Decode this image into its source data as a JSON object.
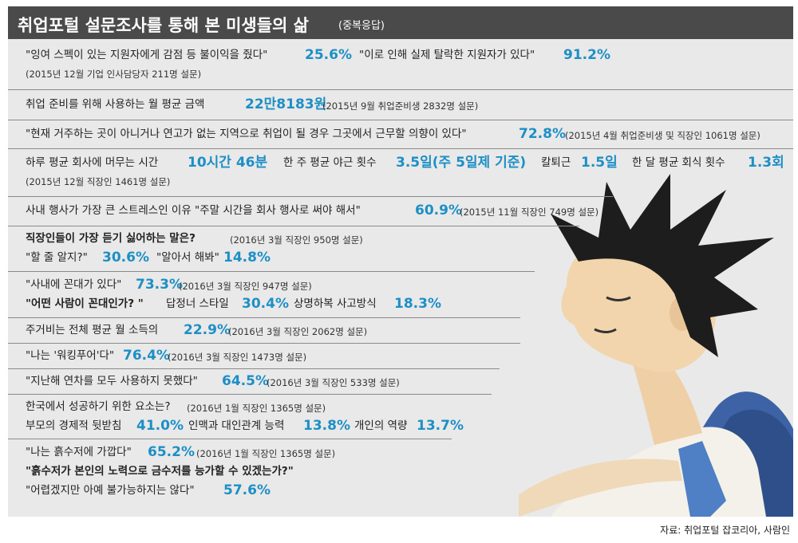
{
  "title": "취업포털 설문조사를 통해 본 미생들의 삶",
  "title_note": "(중복응답)",
  "colors": {
    "accent": "#1d8fc6",
    "title_bg": "#4a4a4a",
    "panel_bg": "#e9e9e9"
  },
  "items": {
    "spec": {
      "q1": "\"잉여 스펙이 있는 지원자에게 감점 등 불이익을 줬다\"",
      "v1": "25.6%",
      "q2": "\"이로 인해 실제 탈락한 지원자가 있다\"",
      "v2": "91.2%",
      "note": "(2015년 12월 기업 인사담당자 211명 설문)"
    },
    "cost": {
      "q": "취업 준비를 위해 사용하는 월 평균 금액",
      "v": "22만8183원",
      "note": "(2015년 9월 취업준비생 2832명 설문)"
    },
    "relocate": {
      "q": "\"현재 거주하는 곳이 아니거나 연고가 없는 지역으로 취업이 될 경우 그곳에서 근무할 의향이 있다\"",
      "v": "72.8%",
      "note": "(2015년 4월 취업준비생 및 직장인 1061명 설문)"
    },
    "hours": {
      "q1": "하루 평균 회사에 머무는 시간",
      "v1": "10시간 46분",
      "q2": "한 주 평균 야근 횟수",
      "v2": "3.5일(주 5일제 기준)",
      "q3": "칼퇴근",
      "v3": "1.5일",
      "q4": "한 달 평균 회식 횟수",
      "v4": "1.3회",
      "note": "(2015년 12월 직장인 1461명 설문)"
    },
    "stress": {
      "q": "사내 행사가 가장 큰 스트레스인 이유  \"주말 시간을 회사 행사로 써야 해서\"",
      "v": "60.9%",
      "note": "(2015년 11월 직장인 749명 설문)"
    },
    "words": {
      "q": "직장인들이 가장 듣기 싫어하는 말은?",
      "note": "(2016년 3월 직장인 950명 설문)",
      "a1": "\"할 줄 알지?\"",
      "v1": "30.6%",
      "a2": "\"알아서 해봐\"",
      "v2": "14.8%"
    },
    "kkondae": {
      "q": "\"사내에 꼰대가 있다\"",
      "v": "73.3%",
      "note": "(2016년 3월 직장인 947명 설문)",
      "q2": "\"어떤 사람이 꼰대인가? \"",
      "a1": "답정너 스타일",
      "v1": "30.4%",
      "a2": "상명하복 사고방식",
      "v2": "18.3%"
    },
    "housing": {
      "q": "주거비는 전체 평균 월 소득의",
      "v": "22.9%",
      "note": "(2016년 3월 직장인 2062명 설문)"
    },
    "working_poor": {
      "q": "\"나는 '워킹푸어'다\"",
      "v": "76.4%",
      "note": "(2016년 3월 직장인 1473명 설문)"
    },
    "vacation": {
      "q": "\"지난해 연차를 모두 사용하지 못했다\"",
      "v": "64.5%",
      "note": "(2016년 3월 직장인 533명 설문)"
    },
    "success": {
      "q": "한국에서 성공하기 위한 요소는?",
      "note": "(2016년 1월 직장인 1365명 설문)",
      "a1": "부모의 경제적 뒷받침",
      "v1": "41.0%",
      "a2": "인맥과 대인관계 능력",
      "v2": "13.8%",
      "a3": "개인의 역량",
      "v3": "13.7%"
    },
    "spoon": {
      "q": "\"나는 흙수저에 가깝다\"",
      "v": "65.2%",
      "note": "(2016년 1월 직장인 1365명 설문)",
      "q2": "\"흙수저가 본인의 노력으로 금수저를 능가할 수 있겠는가?\"",
      "a": "\"어렵겠지만 아예 불가능하지는 않다\"",
      "v2": "57.6%"
    }
  },
  "source": "자료: 취업포털 잡코리아, 사람인",
  "illustration": "tired-office-worker-reclining-in-chair"
}
